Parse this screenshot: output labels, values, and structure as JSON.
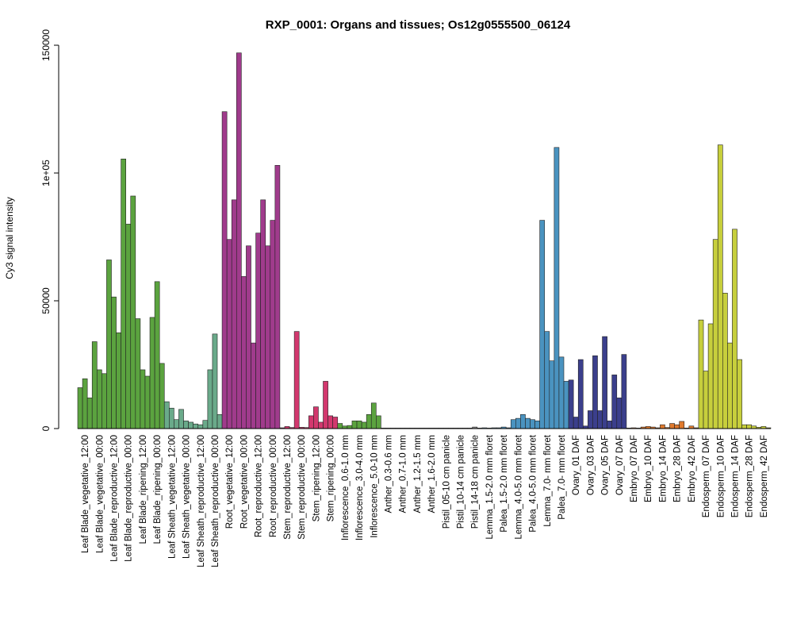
{
  "chart_data": {
    "type": "bar",
    "title": "RXP_0001: Organs and tissues; Os12g0555500_06124",
    "ylabel": "Cy3 signal intensity",
    "xlabel": "",
    "ylim": [
      0,
      150000
    ],
    "yticks": [
      0,
      50000,
      100000,
      150000
    ],
    "ytick_labels": [
      "0",
      "50000",
      "1e+05",
      "150000"
    ],
    "grid": false,
    "groups": [
      {
        "label": "Leaf Blade_vegetative_12:00",
        "color": "#5ba33f",
        "values": [
          16000,
          19500,
          12000
        ]
      },
      {
        "label": "Leaf Blade_vegetative_00:00",
        "color": "#5ba33f",
        "values": [
          34000,
          23000,
          21500
        ]
      },
      {
        "label": "Leaf Blade_reproductive_12:00",
        "color": "#5ba33f",
        "values": [
          66000,
          51500,
          37500
        ]
      },
      {
        "label": "Leaf Blade_reproductive_00:00",
        "color": "#5ba33f",
        "values": [
          105500,
          80000,
          91000
        ]
      },
      {
        "label": "Leaf Blade_ripening_12:00",
        "color": "#5ba33f",
        "values": [
          43000,
          23000,
          20500
        ]
      },
      {
        "label": "Leaf Blade_ripening_00:00",
        "color": "#5ba33f",
        "values": [
          43500,
          57500,
          25500
        ]
      },
      {
        "label": "Leaf Sheath_vegetative_12:00",
        "color": "#6aaa8a",
        "values": [
          10500,
          8000,
          3500
        ]
      },
      {
        "label": "Leaf Sheath_vegetative_00:00",
        "color": "#6aaa8a",
        "values": [
          7500,
          3000,
          2500
        ]
      },
      {
        "label": "Leaf Sheath_reproductive_12:00",
        "color": "#6aaa8a",
        "values": [
          1800,
          1500,
          3200
        ]
      },
      {
        "label": "Leaf Sheath_reproductive_00:00",
        "color": "#6aaa8a",
        "values": [
          23000,
          37000,
          5500
        ]
      },
      {
        "label": "Root_vegetative_12:00",
        "color": "#a03b8c",
        "values": [
          124000,
          74000,
          89500
        ]
      },
      {
        "label": "Root_vegetative_00:00",
        "color": "#a03b8c",
        "values": [
          147000,
          59500,
          71500
        ]
      },
      {
        "label": "Root_reproductive_12:00",
        "color": "#a03b8c",
        "values": [
          33500,
          76500,
          89500
        ]
      },
      {
        "label": "Root_reproductive_00:00",
        "color": "#a03b8c",
        "values": [
          71500,
          81500,
          103000
        ]
      },
      {
        "label": "Stem_reproductive_12:00",
        "color": "#d2386e",
        "values": [
          300,
          800,
          400
        ]
      },
      {
        "label": "Stem_reproductive_00:00",
        "color": "#d2386e",
        "values": [
          38000,
          500,
          400
        ]
      },
      {
        "label": "Stem_ripening_12:00",
        "color": "#d2386e",
        "values": [
          5000,
          8500,
          2500
        ]
      },
      {
        "label": "Stem_ripening_00:00",
        "color": "#d2386e",
        "values": [
          18500,
          5000,
          4500
        ]
      },
      {
        "label": "Inflorescence_0.6-1.0 mm",
        "color": "#5ba33f",
        "values": [
          2000,
          1000,
          1200
        ]
      },
      {
        "label": "Inflorescence_3.0-4.0 mm",
        "color": "#5ba33f",
        "values": [
          3000,
          3000,
          2500
        ]
      },
      {
        "label": "Inflorescence_5.0-10 mm",
        "color": "#5ba33f",
        "values": [
          5500,
          10000,
          5000
        ]
      },
      {
        "label": "Anther_0.3-0.6 mm",
        "color": "#8c8c8c",
        "values": [
          200,
          200,
          200
        ]
      },
      {
        "label": "Anther_0.7-1.0 mm",
        "color": "#8c8c8c",
        "values": [
          200,
          200,
          200
        ]
      },
      {
        "label": "Anther_1.2-1.5 mm",
        "color": "#8c8c8c",
        "values": [
          200,
          200,
          200
        ]
      },
      {
        "label": "Anther_1.6-2.0 mm",
        "color": "#8c8c8c",
        "values": [
          200,
          200,
          200
        ]
      },
      {
        "label": "Pistil_05-10 cm panicle",
        "color": "#8c8c8c",
        "values": [
          200,
          200,
          200
        ]
      },
      {
        "label": "Pistil_10-14 cm panicle",
        "color": "#8c8c8c",
        "values": [
          200,
          200,
          200
        ]
      },
      {
        "label": "Pistil_14-18 cm panicle",
        "color": "#8c8c8c",
        "values": [
          200,
          600,
          200
        ]
      },
      {
        "label": "Lemma_1.5-2.0 mm floret",
        "color": "#4a93c0",
        "values": [
          300,
          200,
          300
        ]
      },
      {
        "label": "Palea_1.5-2.0 mm floret",
        "color": "#4a93c0",
        "values": [
          300,
          600,
          300
        ]
      },
      {
        "label": "Lemma_4.0-5.0 mm floret",
        "color": "#4a93c0",
        "values": [
          3500,
          4000,
          5500
        ]
      },
      {
        "label": "Palea_4.0-5.0 mm floret",
        "color": "#4a93c0",
        "values": [
          4000,
          3500,
          3000
        ]
      },
      {
        "label": "Lemma_7.0- mm floret",
        "color": "#4a93c0",
        "values": [
          81500,
          38000,
          26500
        ]
      },
      {
        "label": "Palea_7.0- mm floret",
        "color": "#4a93c0",
        "values": [
          110000,
          28000,
          18500
        ]
      },
      {
        "label": "Ovary_01 DAF",
        "color": "#3b3f8c",
        "values": [
          19000,
          4500,
          27000
        ]
      },
      {
        "label": "Ovary_03 DAF",
        "color": "#3b3f8c",
        "values": [
          1000,
          7000,
          28500
        ]
      },
      {
        "label": "Ovary_05 DAF",
        "color": "#3b3f8c",
        "values": [
          7000,
          36000,
          3000
        ]
      },
      {
        "label": "Ovary_07 DAF",
        "color": "#3b3f8c",
        "values": [
          21000,
          12000,
          29000
        ]
      },
      {
        "label": "Embryo_07 DAF",
        "color": "#e07a2e",
        "values": [
          200,
          300,
          200
        ]
      },
      {
        "label": "Embryo_10 DAF",
        "color": "#e07a2e",
        "values": [
          600,
          800,
          600
        ]
      },
      {
        "label": "Embryo_14 DAF",
        "color": "#e07a2e",
        "values": [
          300,
          1500,
          400
        ]
      },
      {
        "label": "Embryo_28 DAF",
        "color": "#e07a2e",
        "values": [
          2000,
          1500,
          2800
        ]
      },
      {
        "label": "Embryo_42 DAF",
        "color": "#e07a2e",
        "values": [
          200,
          1000,
          300
        ]
      },
      {
        "label": "Endosperm_07 DAF",
        "color": "#c7cf3c",
        "values": [
          42500,
          22500,
          41000
        ]
      },
      {
        "label": "Endosperm_10 DAF",
        "color": "#c7cf3c",
        "values": [
          74000,
          111000,
          53000
        ]
      },
      {
        "label": "Endosperm_14 DAF",
        "color": "#c7cf3c",
        "values": [
          33500,
          78000,
          27000
        ]
      },
      {
        "label": "Endosperm_28 DAF",
        "color": "#c7cf3c",
        "values": [
          1500,
          1500,
          1000
        ]
      },
      {
        "label": "Endosperm_42 DAF",
        "color": "#c7cf3c",
        "values": [
          500,
          800,
          300
        ]
      }
    ]
  }
}
